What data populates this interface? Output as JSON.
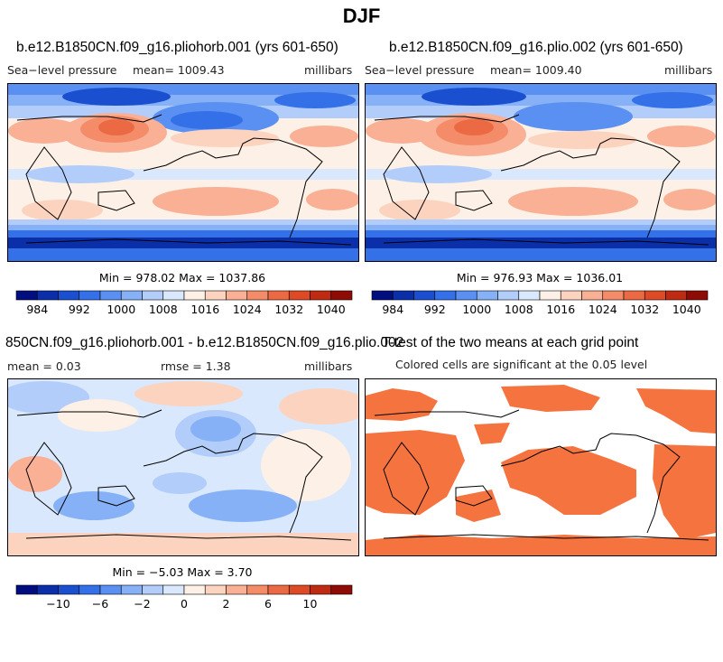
{
  "figure_title": "DJF",
  "colors": {
    "sig": "#f4733f",
    "palette": [
      "#000e7f",
      "#0b2fa8",
      "#1a4fd0",
      "#3470e8",
      "#5a90f2",
      "#86b1f7",
      "#b2cdf9",
      "#d9e8fc",
      "#fdf0e6",
      "#fbd3bf",
      "#f9b094",
      "#f48c69",
      "#ec6a43",
      "#dd4a25",
      "#bf2b12",
      "#8e0c05"
    ]
  },
  "chart_data": [
    {
      "type": "heatmap",
      "title": "b.e12.B1850CN.f09_g16.pliohorb.001 (yrs 601-650)",
      "left_label": "Sea−level pressure",
      "mean_label": "mean= 1009.43",
      "units": "millibars",
      "minmax_label": "Min = 978.02 Max = 1037.86",
      "min": 978.02,
      "max": 1037.86,
      "colorbar_ticks": [
        "984",
        "992",
        "1000",
        "1008",
        "1016",
        "1024",
        "1032",
        "1040"
      ]
    },
    {
      "type": "heatmap",
      "title": "b.e12.B1850CN.f09_g16.plio.002 (yrs 601-650)",
      "left_label": "Sea−level pressure",
      "mean_label": "mean= 1009.40",
      "units": "millibars",
      "minmax_label": "Min = 976.93 Max = 1036.01",
      "min": 976.93,
      "max": 1036.01,
      "colorbar_ticks": [
        "984",
        "992",
        "1000",
        "1008",
        "1016",
        "1024",
        "1032",
        "1040"
      ]
    },
    {
      "type": "heatmap",
      "title": "850CN.f09_g16.pliohorb.001 - b.e12.B1850CN.f09_g16.plio.002",
      "mean_label": "mean =    0.03",
      "rmse_label": "rmse =    1.38",
      "units": "millibars",
      "minmax_label": "Min =  −5.03 Max =    3.70",
      "min": -5.03,
      "max": 3.7,
      "colorbar_ticks": [
        "−10",
        "−6",
        "−2",
        "0",
        "2",
        "6",
        "10"
      ]
    },
    {
      "type": "heatmap",
      "title": "T-test of the two means at each grid point",
      "subtitle": "Colored cells are significant at the 0.05 level"
    }
  ]
}
